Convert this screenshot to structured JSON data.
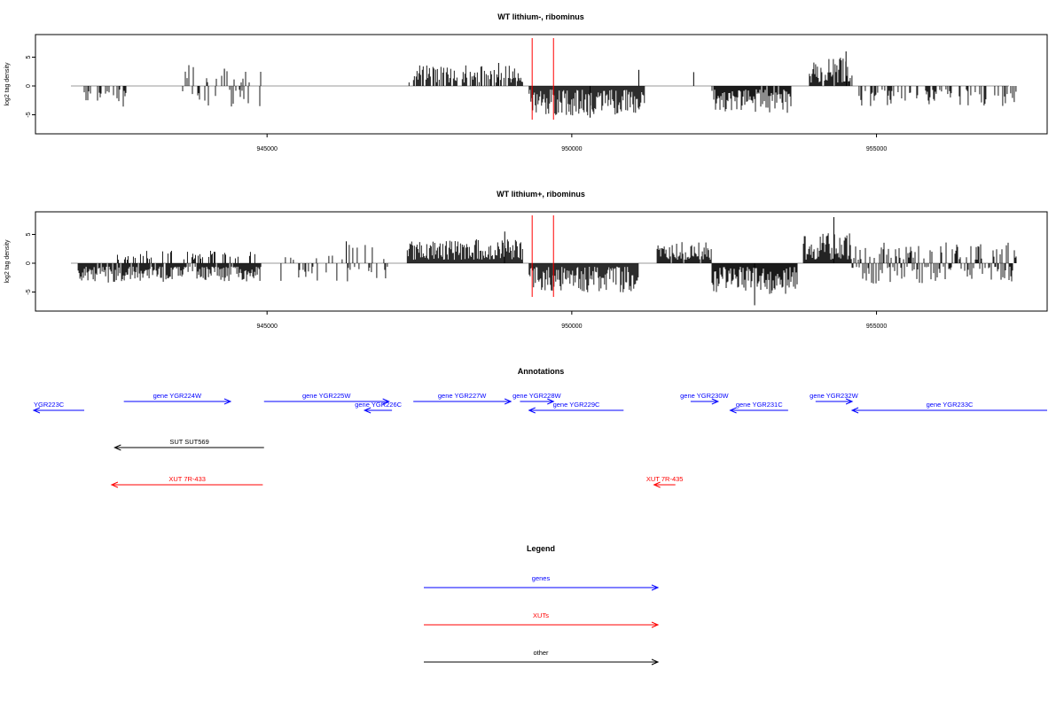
{
  "panels": [
    {
      "title": "WT lithium-, ribominus",
      "ylabel": "log2 tag density",
      "yticks": [
        -5,
        0,
        5
      ],
      "ylim": [
        -8,
        8
      ],
      "xlim": [
        941200,
        957800
      ],
      "xticks": [
        945000,
        950000,
        955000
      ],
      "red_markers_x": [
        949350,
        949700
      ],
      "regions": [
        {
          "from": 942000,
          "to": 942700,
          "mode": "neg",
          "density": 0.28,
          "amp": 2.5
        },
        {
          "from": 943600,
          "to": 944900,
          "mode": "mixed",
          "density": 0.38,
          "amp": 2.6
        },
        {
          "from": 947300,
          "to": 949200,
          "mode": "pos",
          "density": 0.65,
          "amp": 2.5
        },
        {
          "from": 949300,
          "to": 951200,
          "mode": "neg",
          "density": 1.0,
          "amp": 3.8
        },
        {
          "from": 952300,
          "to": 953600,
          "mode": "neg",
          "density": 0.95,
          "amp": 3.6
        },
        {
          "from": 953900,
          "to": 954600,
          "mode": "pos",
          "density": 0.95,
          "amp": 3.8
        },
        {
          "from": 954700,
          "to": 957300,
          "mode": "neg",
          "density": 0.35,
          "amp": 2.4
        }
      ],
      "spikes": [
        [
          944300,
          3
        ],
        [
          948800,
          4
        ],
        [
          951100,
          2.8
        ],
        [
          952000,
          2.4
        ],
        [
          954500,
          6
        ],
        [
          950300,
          -5.5
        ]
      ],
      "seed": 11
    },
    {
      "title": "WT lithium+, ribominus",
      "ylabel": "log2 tag density",
      "yticks": [
        -5,
        0,
        5
      ],
      "ylim": [
        -8,
        8
      ],
      "xlim": [
        941200,
        957800
      ],
      "xticks": [
        945000,
        950000,
        955000
      ],
      "red_markers_x": [
        949350,
        949700
      ],
      "regions": [
        {
          "from": 941900,
          "to": 944900,
          "mode": "neg",
          "density": 0.9,
          "amp": 2.3
        },
        {
          "from": 942500,
          "to": 944900,
          "mode": "pos",
          "density": 0.25,
          "amp": 1.3
        },
        {
          "from": 945200,
          "to": 947100,
          "mode": "mixed",
          "density": 0.25,
          "amp": 2.2
        },
        {
          "from": 947300,
          "to": 949200,
          "mode": "pos",
          "density": 1.0,
          "amp": 3.0
        },
        {
          "from": 949300,
          "to": 951100,
          "mode": "neg",
          "density": 1.0,
          "amp": 3.8
        },
        {
          "from": 951400,
          "to": 952300,
          "mode": "pos",
          "density": 0.85,
          "amp": 2.6
        },
        {
          "from": 952300,
          "to": 953700,
          "mode": "neg",
          "density": 1.0,
          "amp": 4.0
        },
        {
          "from": 953800,
          "to": 954600,
          "mode": "pos",
          "density": 1.0,
          "amp": 4.0
        },
        {
          "from": 954600,
          "to": 957300,
          "mode": "mixed",
          "density": 0.7,
          "amp": 2.5
        }
      ],
      "spikes": [
        [
          954300,
          8
        ],
        [
          946300,
          3.8
        ],
        [
          953000,
          -7.3
        ],
        [
          948900,
          5.5
        ]
      ],
      "seed": 23
    }
  ],
  "annotations": {
    "title": "Annotations",
    "color_gene": "#0000ff",
    "color_xut": "#ff0000",
    "color_other": "#000000",
    "features": [
      {
        "label": "YGR223C",
        "type": "gene",
        "start": 941150,
        "end": 942000,
        "strand": "-",
        "row": 1
      },
      {
        "label": "gene YGR224W",
        "type": "gene",
        "start": 942650,
        "end": 944400,
        "strand": "+",
        "row": 0
      },
      {
        "label": "gene YGR225W",
        "type": "gene",
        "start": 944950,
        "end": 947000,
        "strand": "+",
        "row": 0
      },
      {
        "label": "gene YGR226C",
        "type": "gene",
        "start": 946600,
        "end": 947050,
        "strand": "-",
        "row": 1
      },
      {
        "label": "gene YGR227W",
        "type": "gene",
        "start": 947400,
        "end": 949000,
        "strand": "+",
        "row": 0
      },
      {
        "label": "gene YGR228W",
        "type": "gene",
        "start": 949150,
        "end": 949700,
        "strand": "+",
        "row": 0
      },
      {
        "label": "gene YGR229C",
        "type": "gene",
        "start": 949300,
        "end": 950850,
        "strand": "-",
        "row": 1
      },
      {
        "label": "gene YGR230W",
        "type": "gene",
        "start": 951950,
        "end": 952400,
        "strand": "+",
        "row": 0
      },
      {
        "label": "gene YGR231C",
        "type": "gene",
        "start": 952600,
        "end": 953550,
        "strand": "-",
        "row": 1
      },
      {
        "label": "gene YGR232W",
        "type": "gene",
        "start": 954000,
        "end": 954600,
        "strand": "+",
        "row": 0
      },
      {
        "label": "gene YGR233C",
        "type": "gene",
        "start": 954600,
        "end": 957800,
        "strand": "-",
        "row": 1
      },
      {
        "label": "SUT SUT569",
        "type": "other",
        "start": 942500,
        "end": 944950,
        "strand": "-",
        "row": 2
      },
      {
        "label": "XUT 7R-433",
        "type": "xut",
        "start": 942450,
        "end": 944930,
        "strand": "-",
        "row": 3
      },
      {
        "label": "XUT 7R-435",
        "type": "xut",
        "start": 951350,
        "end": 951700,
        "strand": "-",
        "row": 3
      }
    ]
  },
  "legend": {
    "title": "Legend",
    "items": [
      {
        "label": "genes",
        "color": "#0000ff"
      },
      {
        "label": "XUTs",
        "color": "#ff0000"
      },
      {
        "label": "other",
        "color": "#000000"
      }
    ]
  },
  "chart_data": [
    {
      "type": "bar",
      "title": "WT lithium-, ribominus",
      "ylabel": "log2 tag density",
      "xlabel": "",
      "xlim": [
        941200,
        957800
      ],
      "ylim": [
        -8,
        8
      ],
      "xticks": [
        945000,
        950000,
        955000
      ],
      "yticks": [
        -5,
        0,
        5
      ],
      "grid": false,
      "notable_points": [
        [
          944300,
          3
        ],
        [
          948800,
          4
        ],
        [
          950300,
          -5.5
        ],
        [
          954500,
          6
        ]
      ]
    },
    {
      "type": "bar",
      "title": "WT lithium+, ribominus",
      "ylabel": "log2 tag density",
      "xlabel": "",
      "xlim": [
        941200,
        957800
      ],
      "ylim": [
        -8,
        8
      ],
      "xticks": [
        945000,
        950000,
        955000
      ],
      "yticks": [
        -5,
        0,
        5
      ],
      "grid": false,
      "notable_points": [
        [
          946300,
          3.8
        ],
        [
          948900,
          5.5
        ],
        [
          953000,
          -7.3
        ],
        [
          954300,
          8
        ]
      ]
    }
  ]
}
